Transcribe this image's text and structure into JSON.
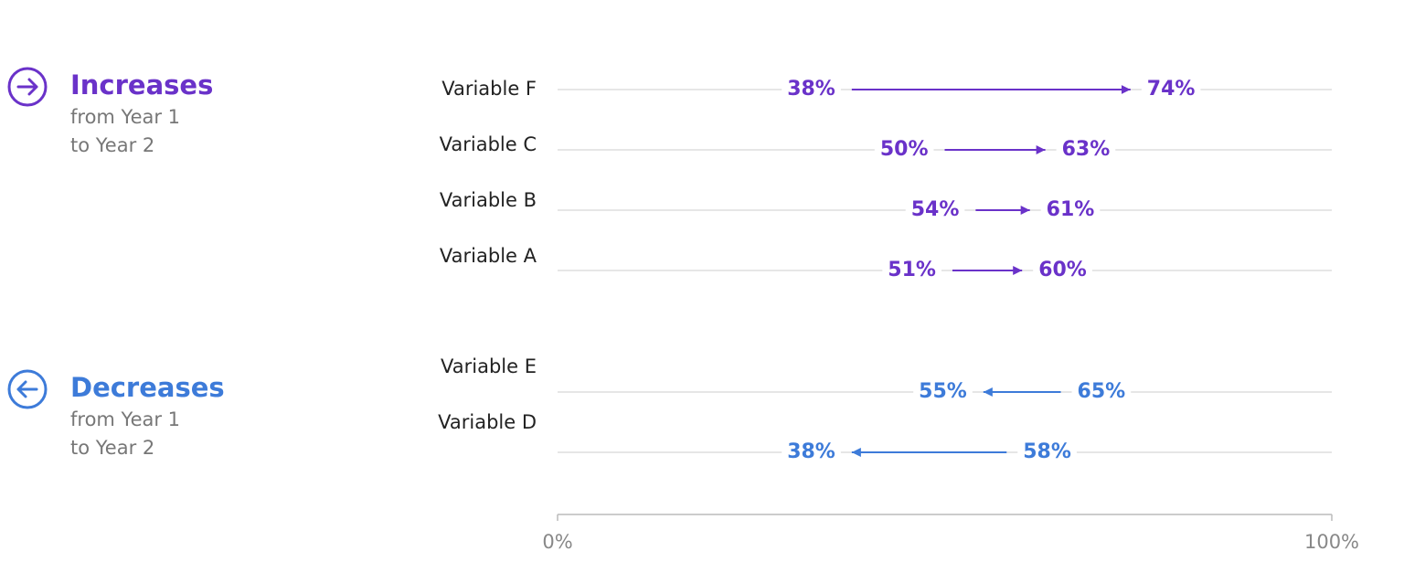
{
  "chart_data": {
    "type": "arrow",
    "xlim": [
      0,
      100
    ],
    "xticks": [
      {
        "value": 0,
        "label": "0%"
      },
      {
        "value": 100,
        "label": "100%"
      }
    ],
    "groups": [
      {
        "title": "Increases",
        "subtitle": [
          "from Year 1",
          "to Year 2"
        ],
        "color": "#6a32c9",
        "categories": [
          "Variable F",
          "Variable C",
          "Variable B",
          "Variable A"
        ],
        "start": [
          38,
          50,
          54,
          51
        ],
        "end": [
          74,
          63,
          61,
          60
        ],
        "start_labels": [
          "38%",
          "50%",
          "54%",
          "51%"
        ],
        "end_labels": [
          "74%",
          "63%",
          "61%",
          "60%"
        ]
      },
      {
        "title": "Decreases",
        "subtitle": [
          "from Year 1",
          "to Year 2"
        ],
        "color": "#3d7bd9",
        "categories": [
          "Variable E",
          "Variable D"
        ],
        "start": [
          65,
          58
        ],
        "end": [
          55,
          38
        ],
        "start_labels": [
          "65%",
          "58%"
        ],
        "end_labels": [
          "55%",
          "38%"
        ]
      }
    ]
  }
}
